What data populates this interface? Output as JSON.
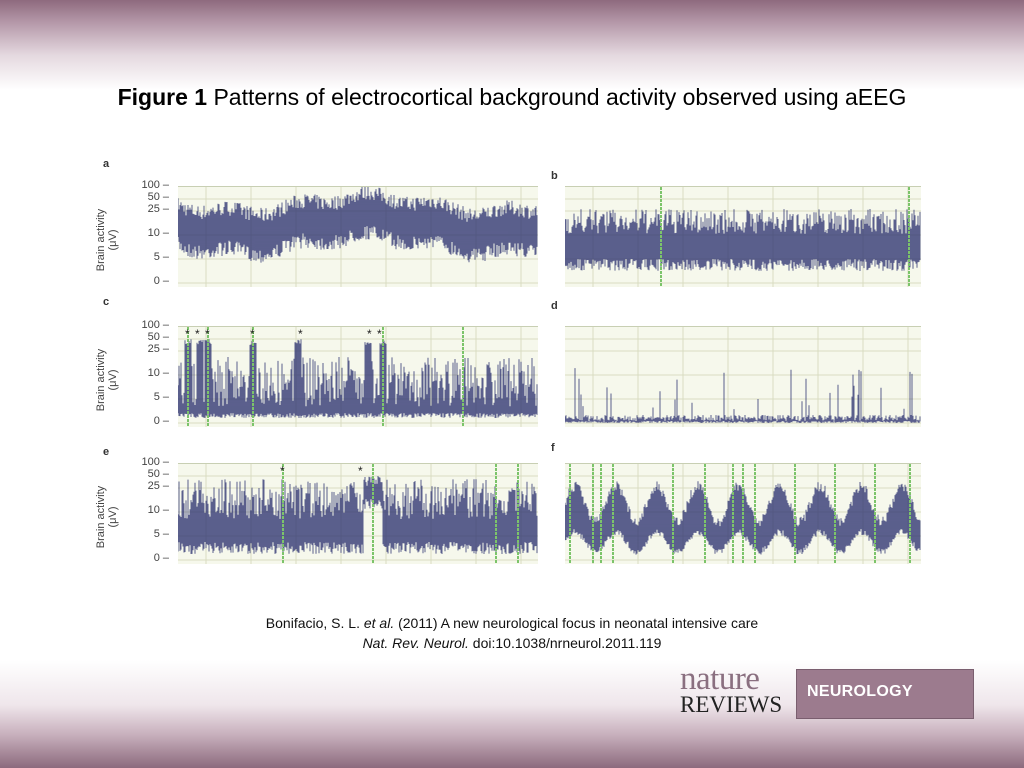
{
  "title": {
    "label": "Figure 1",
    "text": "Patterns of electrocortical background activity observed using aEEG"
  },
  "figure": {
    "y_axis_label": "Brain activity",
    "y_axis_unit": "(μV)",
    "y_ticks": [
      "100",
      "50",
      "25",
      "10",
      "5",
      "0"
    ],
    "panels": [
      {
        "id": "a",
        "pattern": "continuous",
        "star_count": 0
      },
      {
        "id": "b",
        "pattern": "discontinuous",
        "star_count": 0
      },
      {
        "id": "c",
        "pattern": "burst-suppression",
        "star_count": 7,
        "stars": "★★★  ★   ★   ★★"
      },
      {
        "id": "d",
        "pattern": "low-voltage",
        "star_count": 0
      },
      {
        "id": "e",
        "pattern": "seizures",
        "star_count": 2
      },
      {
        "id": "f",
        "pattern": "status-epilepticus",
        "star_count": 0
      }
    ],
    "colors": {
      "trace": "#2a2f6e",
      "grid_background": "#f6f8ec",
      "gridline": "#d9dcc2",
      "marker": "#7cc46a"
    }
  },
  "citation": {
    "authors": "Bonifacio, S. L.",
    "etal": "et al.",
    "rest": "(2011) A new neurological focus in neonatal intensive care",
    "journal": "Nat. Rev. Neurol.",
    "doi": "doi:10.1038/nrneurol.2011.119"
  },
  "logo": {
    "nature": "nature",
    "reviews": "REVIEWS",
    "neurology": "NEUROLOGY"
  }
}
